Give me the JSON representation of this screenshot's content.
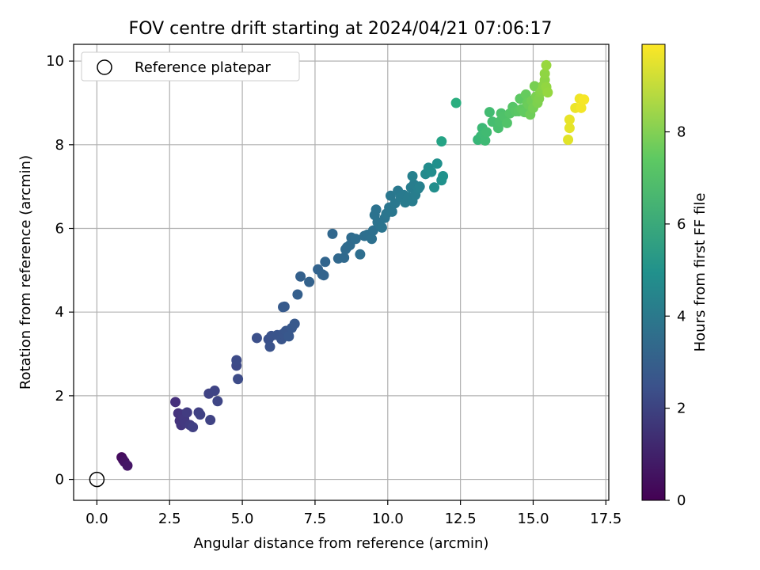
{
  "chart_data": {
    "type": "scatter",
    "title": "FOV centre drift starting at 2024/04/21 07:06:17",
    "xlabel": "Angular distance from reference (arcmin)",
    "ylabel": "Rotation from reference (arcmin)",
    "xlim": [
      -0.8,
      17.6
    ],
    "ylim": [
      -0.5,
      10.4
    ],
    "x_ticks": [
      "0.0",
      "2.5",
      "5.0",
      "7.5",
      "10.0",
      "12.5",
      "15.0",
      "17.5"
    ],
    "y_ticks": [
      "0",
      "2",
      "4",
      "6",
      "8",
      "10"
    ],
    "grid": true,
    "legend": {
      "position": "upper-left",
      "entries": [
        "Reference platepar"
      ]
    },
    "reference_point": {
      "name": "Reference platepar",
      "x": 0.0,
      "y": 0.0
    },
    "colorbar": {
      "label": "Hours from first FF file",
      "range": [
        0,
        9.9
      ],
      "ticks": [
        "0",
        "2",
        "4",
        "6",
        "8"
      ],
      "colormap": "viridis"
    },
    "series": [
      {
        "columns": [
          "x",
          "y",
          "hours"
        ],
        "points": [
          [
            0.85,
            0.53,
            0.3
          ],
          [
            0.9,
            0.47,
            0.4
          ],
          [
            0.95,
            0.42,
            0.5
          ],
          [
            1.05,
            0.33,
            0.6
          ],
          [
            2.7,
            1.85,
            1.4
          ],
          [
            2.8,
            1.58,
            1.5
          ],
          [
            2.85,
            1.4,
            1.5
          ],
          [
            2.9,
            1.3,
            1.6
          ],
          [
            2.95,
            1.55,
            1.6
          ],
          [
            3.0,
            1.45,
            1.7
          ],
          [
            3.05,
            1.35,
            1.7
          ],
          [
            3.1,
            1.6,
            1.8
          ],
          [
            3.2,
            1.3,
            1.8
          ],
          [
            3.3,
            1.25,
            1.9
          ],
          [
            3.5,
            1.6,
            1.9
          ],
          [
            3.55,
            1.55,
            1.95
          ],
          [
            3.85,
            2.05,
            2.0
          ],
          [
            3.9,
            1.42,
            2.0
          ],
          [
            4.05,
            2.12,
            2.05
          ],
          [
            4.15,
            1.87,
            2.1
          ],
          [
            4.8,
            2.72,
            2.2
          ],
          [
            4.8,
            2.85,
            2.25
          ],
          [
            4.85,
            2.4,
            2.3
          ],
          [
            5.5,
            3.38,
            2.4
          ],
          [
            5.9,
            3.35,
            2.45
          ],
          [
            5.95,
            3.17,
            2.5
          ],
          [
            6.0,
            3.43,
            2.5
          ],
          [
            6.2,
            3.45,
            2.55
          ],
          [
            6.35,
            3.35,
            2.6
          ],
          [
            6.4,
            3.48,
            2.6
          ],
          [
            6.5,
            3.55,
            2.65
          ],
          [
            6.6,
            3.42,
            2.7
          ],
          [
            6.7,
            3.62,
            2.7
          ],
          [
            6.8,
            3.72,
            2.75
          ],
          [
            6.4,
            4.12,
            2.8
          ],
          [
            6.45,
            4.13,
            2.8
          ],
          [
            6.9,
            4.42,
            3.0
          ],
          [
            7.0,
            4.85,
            3.05
          ],
          [
            7.3,
            4.72,
            3.1
          ],
          [
            7.6,
            5.02,
            3.15
          ],
          [
            7.75,
            4.9,
            3.2
          ],
          [
            7.8,
            4.88,
            3.2
          ],
          [
            7.85,
            5.2,
            3.25
          ],
          [
            8.1,
            5.87,
            3.3
          ],
          [
            8.3,
            5.28,
            3.35
          ],
          [
            8.5,
            5.3,
            3.4
          ],
          [
            8.55,
            5.5,
            3.45
          ],
          [
            8.6,
            5.55,
            3.45
          ],
          [
            8.7,
            5.6,
            3.5
          ],
          [
            8.75,
            5.78,
            3.5
          ],
          [
            8.9,
            5.75,
            3.55
          ],
          [
            9.05,
            5.38,
            3.6
          ],
          [
            9.2,
            5.82,
            3.6
          ],
          [
            9.3,
            5.85,
            3.65
          ],
          [
            9.45,
            5.75,
            3.7
          ],
          [
            9.5,
            5.95,
            3.7
          ],
          [
            9.55,
            6.32,
            3.75
          ],
          [
            9.6,
            6.45,
            3.75
          ],
          [
            9.65,
            6.15,
            3.8
          ],
          [
            9.75,
            6.05,
            3.8
          ],
          [
            9.8,
            6.02,
            3.85
          ],
          [
            9.9,
            6.25,
            3.85
          ],
          [
            9.95,
            6.35,
            3.9
          ],
          [
            10.05,
            6.5,
            3.9
          ],
          [
            10.1,
            6.78,
            3.95
          ],
          [
            10.15,
            6.4,
            3.95
          ],
          [
            10.25,
            6.6,
            4.0
          ],
          [
            10.35,
            6.9,
            4.0
          ],
          [
            10.45,
            6.75,
            4.05
          ],
          [
            10.55,
            6.8,
            4.05
          ],
          [
            10.6,
            6.62,
            4.1
          ],
          [
            10.7,
            6.75,
            4.1
          ],
          [
            10.8,
            6.98,
            4.15
          ],
          [
            10.85,
            6.65,
            4.15
          ],
          [
            10.9,
            7.05,
            4.2
          ],
          [
            10.95,
            6.8,
            4.2
          ],
          [
            11.05,
            6.95,
            4.25
          ],
          [
            11.1,
            7.0,
            4.3
          ],
          [
            10.85,
            7.25,
            4.3
          ],
          [
            11.3,
            7.3,
            4.7
          ],
          [
            11.4,
            7.45,
            4.75
          ],
          [
            11.5,
            7.35,
            4.8
          ],
          [
            11.6,
            6.98,
            4.85
          ],
          [
            11.7,
            7.55,
            4.9
          ],
          [
            11.85,
            7.15,
            4.95
          ],
          [
            11.9,
            7.25,
            5.0
          ],
          [
            11.85,
            8.08,
            5.8
          ],
          [
            12.35,
            9.0,
            6.3
          ],
          [
            13.1,
            8.12,
            6.6
          ],
          [
            13.2,
            8.2,
            6.65
          ],
          [
            13.25,
            8.4,
            6.7
          ],
          [
            13.3,
            8.25,
            6.75
          ],
          [
            13.35,
            8.1,
            6.75
          ],
          [
            13.4,
            8.3,
            6.8
          ],
          [
            13.5,
            8.78,
            6.85
          ],
          [
            13.6,
            8.55,
            6.9
          ],
          [
            13.8,
            8.4,
            6.95
          ],
          [
            13.85,
            8.55,
            7.0
          ],
          [
            13.9,
            8.75,
            7.05
          ],
          [
            14.0,
            8.68,
            7.1
          ],
          [
            14.1,
            8.52,
            7.15
          ],
          [
            14.2,
            8.75,
            7.2
          ],
          [
            14.3,
            8.9,
            7.25
          ],
          [
            14.4,
            8.8,
            7.3
          ],
          [
            14.5,
            8.8,
            7.35
          ],
          [
            14.55,
            9.1,
            7.4
          ],
          [
            14.6,
            8.85,
            7.45
          ],
          [
            14.7,
            8.78,
            7.5
          ],
          [
            14.75,
            9.2,
            7.55
          ],
          [
            14.8,
            9.0,
            7.6
          ],
          [
            14.85,
            8.95,
            7.65
          ],
          [
            14.9,
            8.72,
            7.7
          ],
          [
            14.95,
            9.05,
            7.75
          ],
          [
            15.0,
            8.88,
            7.8
          ],
          [
            15.05,
            9.4,
            7.85
          ],
          [
            15.1,
            9.15,
            7.9
          ],
          [
            15.15,
            9.0,
            7.95
          ],
          [
            15.2,
            9.1,
            8.0
          ],
          [
            15.25,
            9.25,
            8.05
          ],
          [
            15.3,
            9.3,
            8.1
          ],
          [
            15.35,
            9.42,
            8.15
          ],
          [
            15.4,
            9.55,
            8.2
          ],
          [
            15.4,
            9.7,
            8.25
          ],
          [
            15.45,
            9.38,
            8.3
          ],
          [
            15.5,
            9.25,
            8.35
          ],
          [
            15.45,
            9.9,
            8.4
          ],
          [
            16.2,
            8.12,
            9.5
          ],
          [
            16.25,
            8.4,
            9.55
          ],
          [
            16.25,
            8.6,
            9.6
          ],
          [
            16.45,
            8.88,
            9.65
          ],
          [
            16.6,
            9.1,
            9.7
          ],
          [
            16.65,
            8.88,
            9.75
          ],
          [
            16.75,
            9.08,
            9.8
          ]
        ]
      }
    ]
  },
  "colors": {
    "grid": "#b0b0b0",
    "axes": "#000000",
    "background": "#ffffff"
  }
}
